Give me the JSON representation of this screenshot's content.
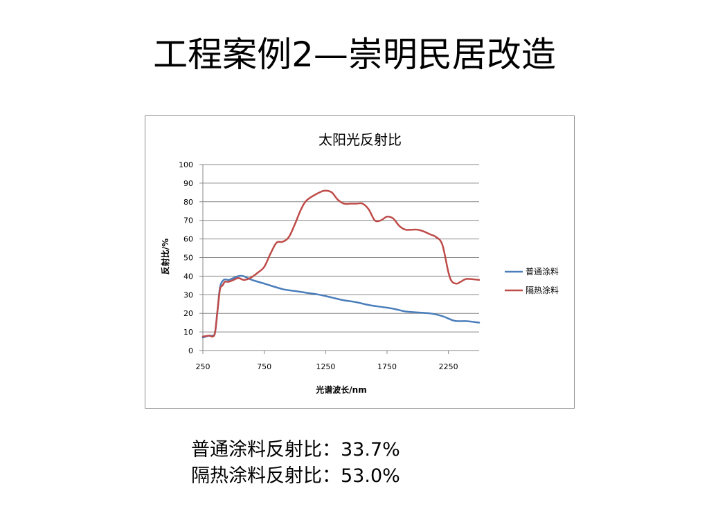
{
  "slide": {
    "title": "工程案例2—崇明民居改造",
    "summary": [
      {
        "label": "普通涂料反射比：",
        "value": "33.7%"
      },
      {
        "label": "隔热涂料反射比：",
        "value": "53.0%"
      }
    ]
  },
  "chart_data": {
    "type": "line",
    "title": "太阳光反射比",
    "xlabel": "光谱波长/nm",
    "ylabel": "反射比/%",
    "xlim": [
      250,
      2500
    ],
    "ylim": [
      0,
      100
    ],
    "xticks": [
      250,
      750,
      1250,
      1750,
      2250
    ],
    "yticks": [
      0,
      10,
      20,
      30,
      40,
      50,
      60,
      70,
      80,
      90,
      100
    ],
    "grid": "horizontal",
    "legend_position": "right",
    "series": [
      {
        "name": "普通涂料",
        "color": "#4a7ebb",
        "points": [
          [
            250,
            7
          ],
          [
            300,
            8
          ],
          [
            330,
            8
          ],
          [
            350,
            10
          ],
          [
            370,
            22
          ],
          [
            390,
            34
          ],
          [
            420,
            38
          ],
          [
            460,
            38
          ],
          [
            500,
            39
          ],
          [
            540,
            40
          ],
          [
            580,
            40
          ],
          [
            650,
            38
          ],
          [
            750,
            36
          ],
          [
            900,
            33
          ],
          [
            1000,
            32
          ],
          [
            1100,
            31
          ],
          [
            1200,
            30
          ],
          [
            1300,
            28.5
          ],
          [
            1400,
            27
          ],
          [
            1500,
            26
          ],
          [
            1600,
            24.5
          ],
          [
            1700,
            23.5
          ],
          [
            1800,
            22.5
          ],
          [
            1900,
            21
          ],
          [
            2000,
            20.5
          ],
          [
            2100,
            20
          ],
          [
            2200,
            18.5
          ],
          [
            2300,
            16
          ],
          [
            2400,
            15.8
          ],
          [
            2500,
            15
          ]
        ]
      },
      {
        "name": "隔热涂料",
        "color": "#be4b48",
        "points": [
          [
            250,
            7.5
          ],
          [
            300,
            8
          ],
          [
            330,
            7.5
          ],
          [
            350,
            10
          ],
          [
            370,
            22
          ],
          [
            390,
            33
          ],
          [
            410,
            35
          ],
          [
            430,
            37
          ],
          [
            460,
            37
          ],
          [
            500,
            38
          ],
          [
            540,
            39
          ],
          [
            580,
            38
          ],
          [
            620,
            38.5
          ],
          [
            660,
            40
          ],
          [
            700,
            42
          ],
          [
            750,
            45
          ],
          [
            800,
            52
          ],
          [
            850,
            58
          ],
          [
            900,
            58.5
          ],
          [
            950,
            61
          ],
          [
            1000,
            68
          ],
          [
            1050,
            76
          ],
          [
            1100,
            81
          ],
          [
            1200,
            85
          ],
          [
            1250,
            86
          ],
          [
            1300,
            85
          ],
          [
            1350,
            81
          ],
          [
            1400,
            79
          ],
          [
            1450,
            79
          ],
          [
            1500,
            79
          ],
          [
            1550,
            79
          ],
          [
            1600,
            76
          ],
          [
            1650,
            70
          ],
          [
            1700,
            70
          ],
          [
            1750,
            72
          ],
          [
            1800,
            71
          ],
          [
            1850,
            67
          ],
          [
            1900,
            65
          ],
          [
            1950,
            65
          ],
          [
            2000,
            65
          ],
          [
            2050,
            64
          ],
          [
            2100,
            62.5
          ],
          [
            2150,
            61
          ],
          [
            2200,
            57
          ],
          [
            2250,
            42
          ],
          [
            2280,
            37
          ],
          [
            2320,
            36
          ],
          [
            2350,
            37
          ],
          [
            2400,
            38.5
          ],
          [
            2500,
            38
          ]
        ]
      }
    ]
  }
}
